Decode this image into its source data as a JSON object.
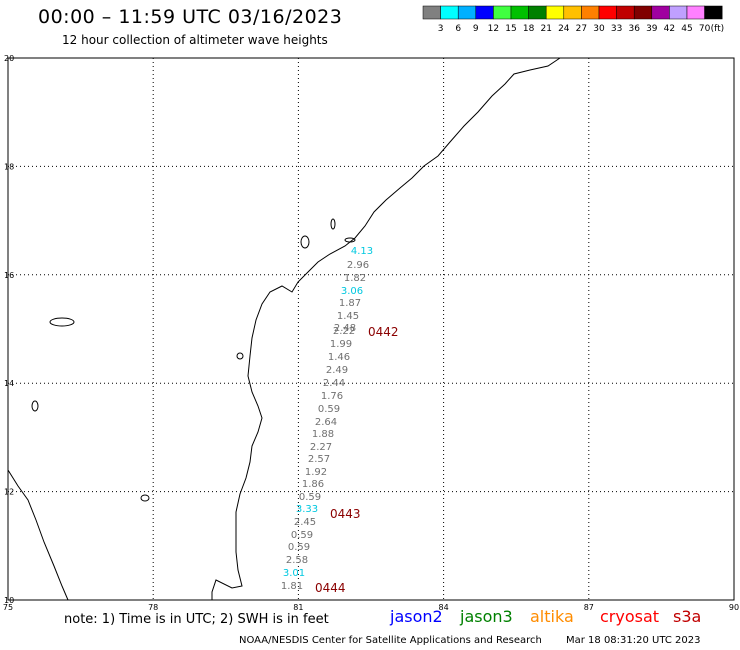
{
  "header": {
    "title": "00:00 – 11:59 UTC 03/16/2023",
    "subtitle": "12 hour collection of altimeter wave heights"
  },
  "color_scale": {
    "colors": [
      "#808080",
      "#00ffff",
      "#00b0ff",
      "#0000ff",
      "#40ff40",
      "#00c000",
      "#008000",
      "#ffff00",
      "#ffc000",
      "#ff8000",
      "#ff0000",
      "#c00000",
      "#800000",
      "#a000a0",
      "#c0a0ff",
      "#ff80ff",
      "#000000"
    ],
    "labels": [
      "3",
      "6",
      "9",
      "12",
      "15",
      "18",
      "21",
      "24",
      "27",
      "30",
      "33",
      "36",
      "39",
      "42",
      "45",
      "70"
    ],
    "unit": "(ft)"
  },
  "map": {
    "lon_labels": [
      "75",
      "78",
      "81",
      "84",
      "87",
      "90"
    ],
    "lat_labels": [
      "20",
      "18",
      "16",
      "14",
      "12",
      "10"
    ],
    "lon_range": [
      75,
      90
    ],
    "lat_range": [
      10,
      20
    ],
    "observations": [
      {
        "value": "4.13",
        "color": "#00c8e0"
      },
      {
        "value": "2.96",
        "color": "#707070"
      },
      {
        "value": "1.82",
        "color": "#707070"
      },
      {
        "value": "3.06",
        "color": "#00c8e0"
      },
      {
        "value": "1.87",
        "color": "#707070"
      },
      {
        "value": "1.45",
        "color": "#707070"
      },
      {
        "value": "2.48",
        "color": "#707070"
      },
      {
        "value": "2.22",
        "color": "#707070"
      },
      {
        "value": "1.99",
        "color": "#707070"
      },
      {
        "value": "1.46",
        "color": "#707070"
      },
      {
        "value": "2.49",
        "color": "#707070"
      },
      {
        "value": "2.44",
        "color": "#707070"
      },
      {
        "value": "1.76",
        "color": "#707070"
      },
      {
        "value": "0.59",
        "color": "#707070"
      },
      {
        "value": "2.64",
        "color": "#707070"
      },
      {
        "value": "1.88",
        "color": "#707070"
      },
      {
        "value": "2.27",
        "color": "#707070"
      },
      {
        "value": "2.57",
        "color": "#707070"
      },
      {
        "value": "1.92",
        "color": "#707070"
      },
      {
        "value": "1.86",
        "color": "#707070"
      },
      {
        "value": "0.59",
        "color": "#707070"
      },
      {
        "value": "3.33",
        "color": "#00c8e0"
      },
      {
        "value": "2.45",
        "color": "#707070"
      },
      {
        "value": "0.59",
        "color": "#707070"
      },
      {
        "value": "0.59",
        "color": "#707070"
      },
      {
        "value": "2.58",
        "color": "#707070"
      },
      {
        "value": "3.01",
        "color": "#00c8e0"
      },
      {
        "value": "1.81",
        "color": "#707070"
      }
    ],
    "time_labels": [
      "0442",
      "0443",
      "0444"
    ]
  },
  "footer": {
    "note": "note: 1) Time is in UTC; 2) SWH is in feet",
    "satellites": [
      {
        "name": "jason2",
        "color": "#0000ff"
      },
      {
        "name": "jason3",
        "color": "#008000"
      },
      {
        "name": "altika",
        "color": "#ff8c00"
      },
      {
        "name": "cryosat",
        "color": "#ff0000"
      },
      {
        "name": "s3a",
        "color": "#c00000"
      }
    ],
    "credit": "NOAA/NESDIS Center for Satellite Applications and Research",
    "timestamp": "Mar 18 08:31:20 UTC 2023"
  }
}
